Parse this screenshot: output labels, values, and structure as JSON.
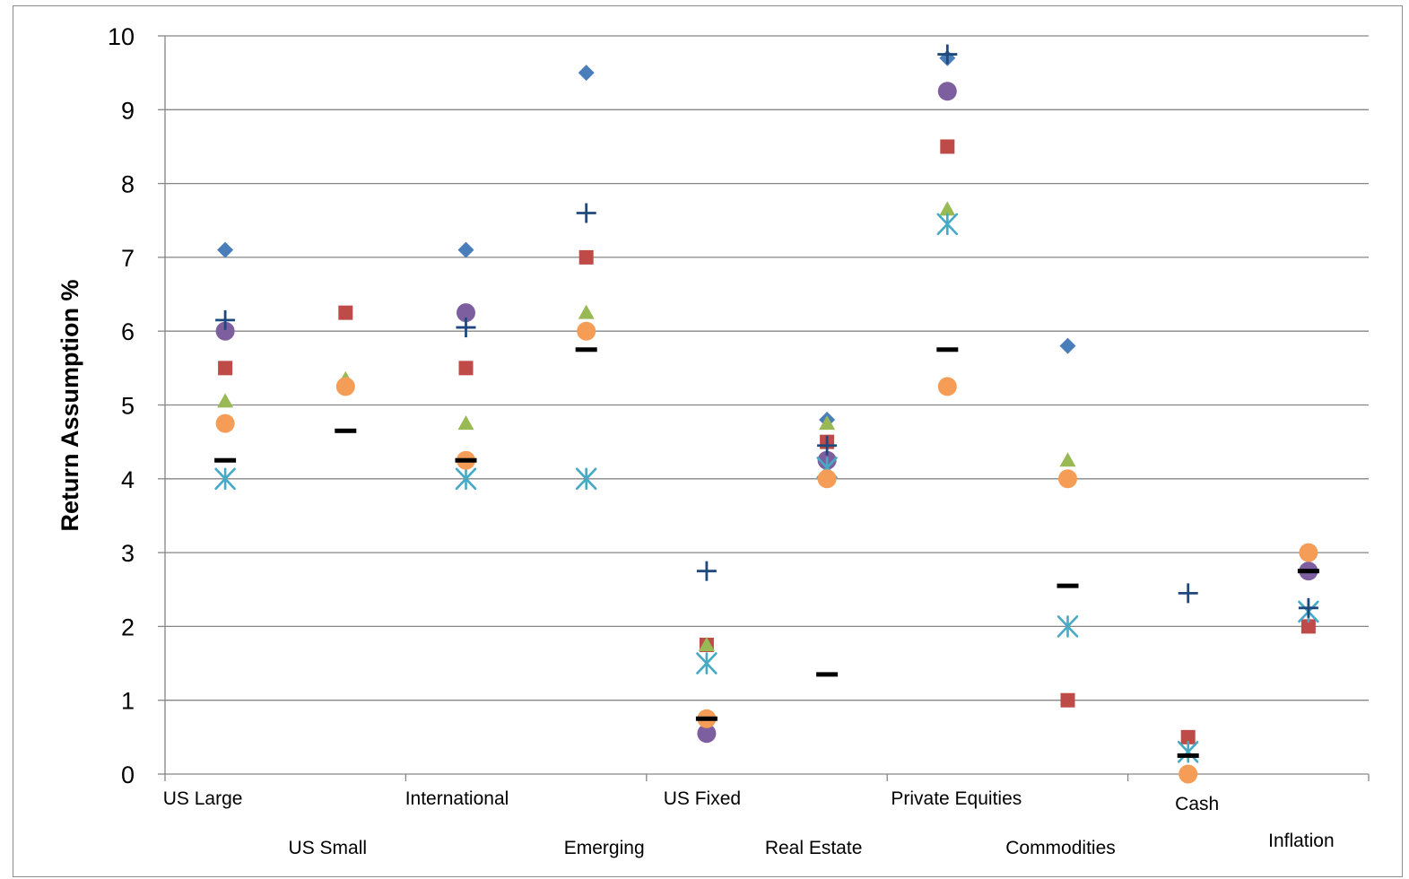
{
  "chart_data": {
    "type": "scatter",
    "title": "",
    "xlabel": "",
    "ylabel": "Return Assumption %",
    "ylim": [
      0,
      10
    ],
    "yticks": [
      "0",
      "1",
      "2",
      "3",
      "4",
      "5",
      "6",
      "7",
      "8",
      "9",
      "10"
    ],
    "grid": "horizontal",
    "legend": "none",
    "categories": [
      "US Large",
      "US Small",
      "International",
      "Emerging",
      "US Fixed",
      "Real Estate",
      "Private Equities",
      "Commodities",
      "Cash",
      "Inflation"
    ],
    "series": [
      {
        "marker": "diamond",
        "color": "#4a7ebb",
        "values": [
          7.1,
          null,
          7.1,
          9.5,
          null,
          4.8,
          9.7,
          5.8,
          null,
          null
        ]
      },
      {
        "marker": "square",
        "color": "#be4b48",
        "values": [
          5.5,
          6.25,
          5.5,
          7.0,
          1.75,
          4.5,
          8.5,
          1.0,
          0.5,
          2.0
        ]
      },
      {
        "marker": "triangle",
        "color": "#98b954",
        "values": [
          5.05,
          5.35,
          4.75,
          6.25,
          1.75,
          4.75,
          7.65,
          4.25,
          null,
          null
        ]
      },
      {
        "marker": "circle",
        "color": "#7d5fa0",
        "values": [
          6.0,
          null,
          6.25,
          null,
          0.55,
          4.25,
          9.25,
          null,
          null,
          2.75
        ]
      },
      {
        "marker": "star",
        "color": "#46aac5",
        "values": [
          4.0,
          null,
          4.0,
          4.0,
          1.5,
          4.15,
          7.45,
          2.0,
          0.3,
          2.2
        ]
      },
      {
        "marker": "circle",
        "color": "#f59d56",
        "values": [
          4.75,
          5.25,
          4.25,
          6.0,
          0.75,
          4.0,
          5.25,
          4.0,
          0.0,
          3.0
        ]
      },
      {
        "marker": "plus",
        "color": "#1f497d",
        "values": [
          6.15,
          null,
          6.05,
          7.6,
          2.75,
          4.45,
          9.75,
          null,
          2.45,
          2.25
        ]
      },
      {
        "marker": "dash",
        "color": "#000000",
        "values": [
          4.25,
          4.65,
          4.25,
          5.75,
          0.75,
          1.35,
          5.75,
          2.55,
          0.25,
          2.75
        ]
      }
    ]
  }
}
